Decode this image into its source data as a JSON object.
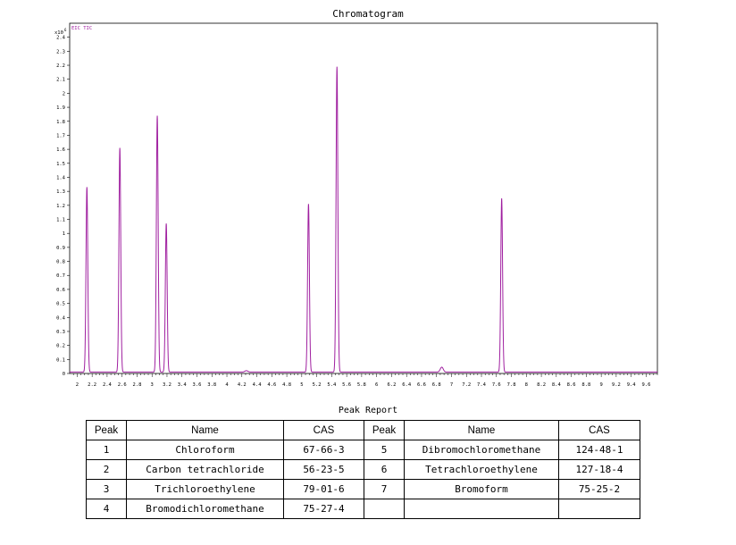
{
  "chart_data": {
    "type": "line",
    "title": "Chromatogram",
    "trace_label": "EIC TIC",
    "y_multiplier_label": "x10",
    "y_multiplier_exp": "6",
    "xlim": [
      1.9,
      9.75
    ],
    "ylim": [
      0,
      2.5
    ],
    "x_ticks": [
      "2",
      "2.2",
      "2.4",
      "2.6",
      "2.8",
      "3",
      "3.2",
      "3.4",
      "3.6",
      "3.8",
      "4",
      "4.2",
      "4.4",
      "4.6",
      "4.8",
      "5",
      "5.2",
      "5.4",
      "5.6",
      "5.8",
      "6",
      "6.2",
      "6.4",
      "6.6",
      "6.8",
      "7",
      "7.2",
      "7.4",
      "7.6",
      "7.8",
      "8",
      "8.2",
      "8.4",
      "8.6",
      "8.8",
      "9",
      "9.2",
      "9.4",
      "9.6"
    ],
    "y_ticks": [
      "0",
      "0.1",
      "0.2",
      "0.3",
      "0.4",
      "0.5",
      "0.6",
      "0.7",
      "0.8",
      "0.9",
      "1",
      "1.1",
      "1.2",
      "1.3",
      "1.4",
      "1.5",
      "1.6",
      "1.7",
      "1.8",
      "1.9",
      "2",
      "2.1",
      "2.2",
      "2.3",
      "2.4"
    ],
    "baseline": 0.01,
    "color": "#a020a0",
    "peaks": [
      {
        "rt": 2.13,
        "height": 1.32
      },
      {
        "rt": 2.57,
        "height": 1.6
      },
      {
        "rt": 3.07,
        "height": 1.83
      },
      {
        "rt": 3.19,
        "height": 1.06
      },
      {
        "rt": 4.26,
        "height": 0.01
      },
      {
        "rt": 5.09,
        "height": 1.2
      },
      {
        "rt": 5.47,
        "height": 2.18
      },
      {
        "rt": 6.87,
        "height": 0.035
      },
      {
        "rt": 7.67,
        "height": 1.24
      }
    ]
  },
  "report": {
    "title": "Peak Report",
    "headers": {
      "peak": "Peak",
      "name": "Name",
      "cas": "CAS"
    },
    "rows": [
      {
        "peak": "1",
        "name": "Chloroform",
        "cas": "67-66-3",
        "peak2": "5",
        "name2": "Dibromochloromethane",
        "cas2": "124-48-1"
      },
      {
        "peak": "2",
        "name": "Carbon tetrachloride",
        "cas": "56-23-5",
        "peak2": "6",
        "name2": "Tetrachloroethylene",
        "cas2": "127-18-4"
      },
      {
        "peak": "3",
        "name": "Trichloroethylene",
        "cas": "79-01-6",
        "peak2": "7",
        "name2": "Bromoform",
        "cas2": "75-25-2"
      },
      {
        "peak": "4",
        "name": "Bromodichloromethane",
        "cas": "75-27-4",
        "peak2": "",
        "name2": "",
        "cas2": ""
      }
    ]
  }
}
